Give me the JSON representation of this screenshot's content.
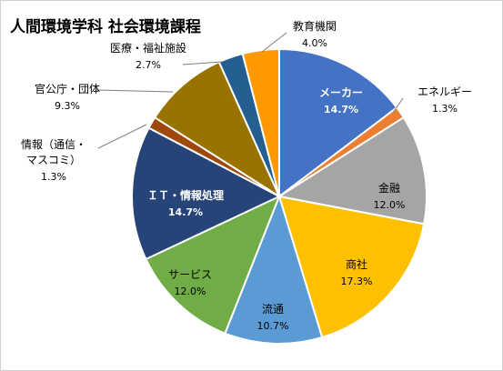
{
  "chart_data": {
    "type": "pie",
    "title": "人間環境学科 社会環境課程",
    "start_angle_deg": 0,
    "direction": "clockwise",
    "slices": [
      {
        "name": "メーカー",
        "value": 14.7,
        "label": "14.7%",
        "color": "#4472C4"
      },
      {
        "name": "エネルギー",
        "value": 1.3,
        "label": "1.3%",
        "color": "#ED7D31"
      },
      {
        "name": "金融",
        "value": 12.0,
        "label": "12.0%",
        "color": "#A5A5A5"
      },
      {
        "name": "商社",
        "value": 17.3,
        "label": "17.3%",
        "color": "#FFC000"
      },
      {
        "name": "流通",
        "value": 10.7,
        "label": "10.7%",
        "color": "#5B9BD5"
      },
      {
        "name": "サービス",
        "value": 12.0,
        "label": "12.0%",
        "color": "#70AD47"
      },
      {
        "name": "ＩＴ・情報処理",
        "value": 14.7,
        "label": "14.7%",
        "color": "#264478"
      },
      {
        "name": "情報（通信・\nマスコミ）",
        "value": 1.3,
        "label": "1.3%",
        "color": "#9E480E"
      },
      {
        "name": "官公庁・団体",
        "value": 9.3,
        "label": "9.3%",
        "color": "#997300"
      },
      {
        "name": "医療・福祉施設",
        "value": 2.7,
        "label": "2.7%",
        "color": "#255E91"
      },
      {
        "name": "教育機関",
        "value": 4.0,
        "label": "4.0%",
        "color": "#FF9900"
      }
    ]
  }
}
